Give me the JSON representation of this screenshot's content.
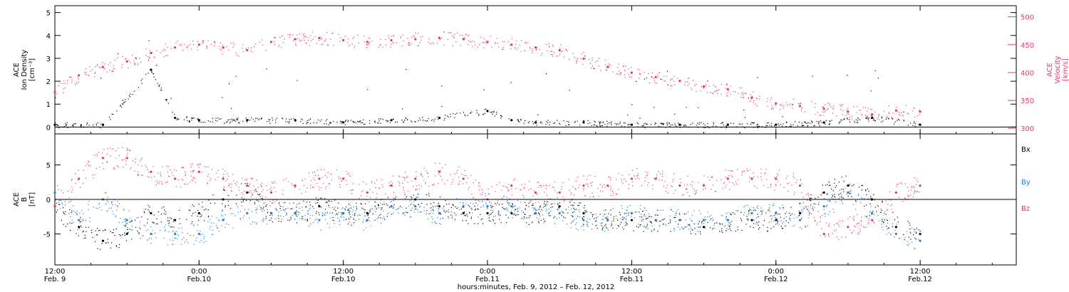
{
  "chart_data": {
    "type": "scatter",
    "xlabel": "hours:minutes, Feb. 9, 2012 – Feb. 12, 2012",
    "x_ticks": [
      {
        "time": "12:00",
        "date": "Feb. 9"
      },
      {
        "time": "0:00",
        "date": "Feb.10"
      },
      {
        "time": "12:00",
        "date": "Feb.10"
      },
      {
        "time": "0:00",
        "date": "Feb.11"
      },
      {
        "time": "12:00",
        "date": "Feb.11"
      },
      {
        "time": "0:00",
        "date": "Feb.12"
      },
      {
        "time": "12:00",
        "date": "Feb.12"
      }
    ],
    "x_range_hours": [
      0,
      80
    ],
    "data_end_hour": 72,
    "panels": [
      {
        "ylabel": [
          "ACE",
          "Ion Density",
          "[cm⁻³]"
        ],
        "ylim": [
          -0.3,
          5.3
        ],
        "yticks": [
          0,
          1,
          2,
          3,
          4,
          5
        ],
        "ylabel_right": [
          "ACE",
          "Velocity",
          "[km/s]"
        ],
        "ylim_right": [
          290,
          520
        ],
        "yticks_right": [
          300,
          350,
          400,
          450,
          500
        ],
        "series": [
          {
            "axis": "left",
            "color": "#000000",
            "x": [
              0,
              4,
              8,
              10,
              12,
              16,
              20,
              24,
              28,
              32,
              36,
              38,
              40,
              44,
              48,
              52,
              56,
              60,
              64,
              68,
              72
            ],
            "y": [
              0.1,
              0.1,
              2.5,
              0.4,
              0.3,
              0.3,
              0.3,
              0.2,
              0.3,
              0.4,
              0.7,
              0.3,
              0.2,
              0.2,
              0.1,
              0.1,
              0.1,
              0.1,
              0.2,
              0.4,
              0.1
            ]
          },
          {
            "axis": "right",
            "color": "#e8366a",
            "x": [
              0,
              2,
              4,
              6,
              8,
              10,
              12,
              14,
              16,
              18,
              20,
              22,
              24,
              26,
              28,
              30,
              32,
              34,
              36,
              38,
              40,
              42,
              44,
              46,
              48,
              50,
              52,
              54,
              56,
              58,
              60,
              62,
              64,
              66,
              68,
              70,
              72
            ],
            "y": [
              365,
              395,
              410,
              420,
              435,
              445,
              450,
              445,
              440,
              455,
              460,
              462,
              458,
              455,
              458,
              460,
              462,
              460,
              455,
              450,
              445,
              440,
              425,
              410,
              400,
              392,
              385,
              375,
              370,
              355,
              345,
              340,
              335,
              330,
              325,
              332,
              330
            ]
          }
        ]
      },
      {
        "ylabel": [
          "ACE",
          "B",
          "[nT]"
        ],
        "ylim": [
          -9.5,
          9.5
        ],
        "yticks": [
          -5,
          0,
          5
        ],
        "series": [
          {
            "name": "Bx",
            "color": "#000000",
            "x": [
              0,
              2,
              4,
              6,
              8,
              10,
              12,
              14,
              16,
              18,
              20,
              22,
              24,
              26,
              28,
              30,
              32,
              34,
              36,
              38,
              40,
              42,
              44,
              46,
              48,
              50,
              52,
              54,
              56,
              58,
              60,
              62,
              64,
              66,
              68,
              70,
              72
            ],
            "y": [
              -1,
              -4,
              -6,
              -5,
              -2,
              -3,
              -2,
              0,
              1,
              -2,
              -2,
              -1,
              -2,
              -2,
              -1,
              0,
              -1,
              -2,
              -2,
              -2,
              -2,
              -1,
              -2,
              -3,
              -3,
              -3,
              -3,
              -4,
              -3,
              -3,
              -3,
              -2,
              1,
              2,
              0,
              -4,
              -5
            ]
          },
          {
            "name": "By",
            "color": "#1e7ed8",
            "x": [
              0,
              2,
              4,
              6,
              8,
              10,
              12,
              14,
              16,
              18,
              20,
              22,
              24,
              26,
              28,
              30,
              32,
              34,
              36,
              38,
              40,
              42,
              44,
              46,
              48,
              50,
              52,
              54,
              56,
              58,
              60,
              62,
              64,
              66,
              68,
              70,
              72
            ],
            "y": [
              1,
              -3,
              0,
              -3,
              -5,
              -5,
              -5,
              -3,
              -2,
              -2,
              -2,
              -3,
              -2,
              -3,
              -1,
              -1,
              -2,
              -1,
              -1,
              -1,
              -2,
              -2,
              -3,
              -3,
              -2,
              -3,
              -3,
              -3,
              -3,
              -2,
              -2,
              -3,
              -1,
              1,
              -2,
              -5,
              -6
            ]
          },
          {
            "name": "Bz",
            "color": "#e8366a",
            "x": [
              0,
              2,
              4,
              6,
              8,
              10,
              12,
              14,
              16,
              18,
              20,
              22,
              24,
              26,
              28,
              30,
              32,
              34,
              36,
              38,
              40,
              42,
              44,
              46,
              48,
              50,
              52,
              54,
              56,
              58,
              60,
              62,
              64,
              66,
              68,
              70,
              72
            ],
            "y": [
              -1,
              3,
              6,
              6,
              4,
              3,
              4,
              3,
              2,
              1,
              2,
              3,
              3,
              1,
              2,
              3,
              4,
              3,
              0,
              2,
              1,
              1,
              2,
              2,
              3,
              3,
              2,
              2,
              3,
              3,
              3,
              2,
              -5,
              -4,
              -3,
              1,
              2
            ]
          }
        ]
      }
    ],
    "legend": [
      "Bx",
      "By",
      "Bz"
    ],
    "legend_placement": "right"
  }
}
